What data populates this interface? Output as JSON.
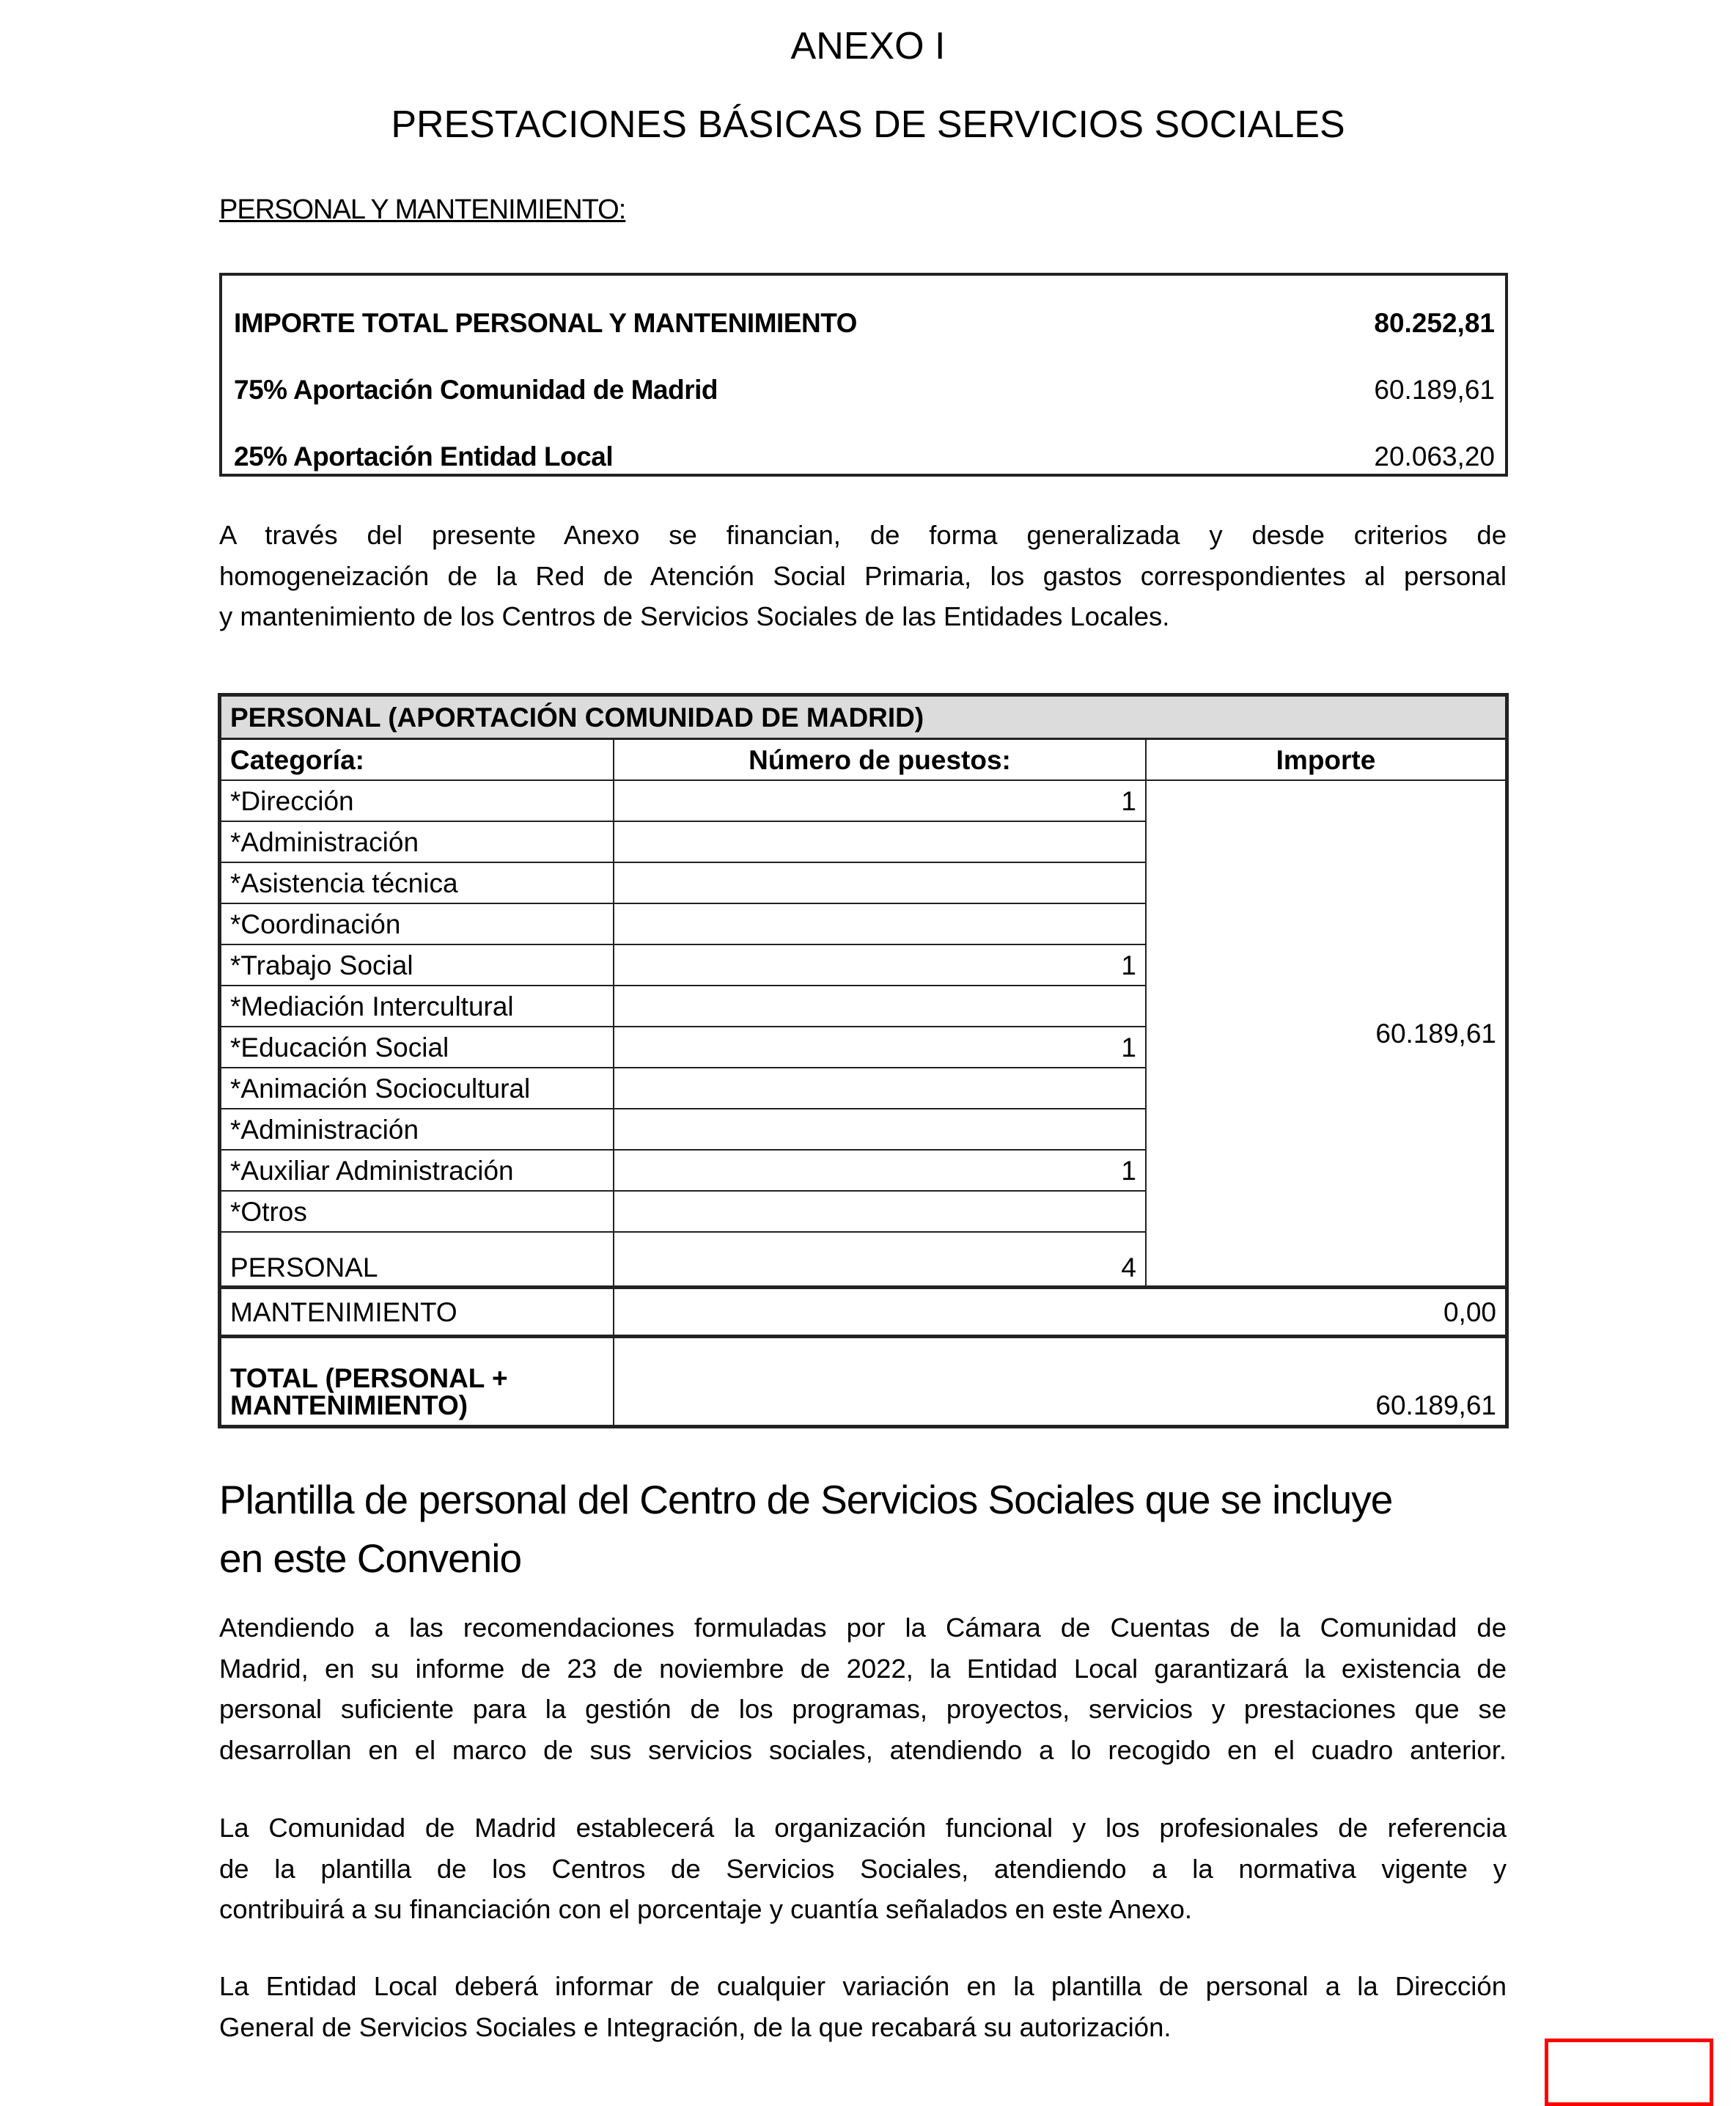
{
  "title": "ANEXO I",
  "subtitle": "PRESTACIONES BÁSICAS DE SERVICIOS SOCIALES",
  "section_heading": "PERSONAL Y MANTENIMIENTO:",
  "summary": [
    {
      "label": "IMPORTE TOTAL PERSONAL Y MANTENIMIENTO",
      "value": "80.252,81"
    },
    {
      "label": "75% Aportación Comunidad de Madrid",
      "value": "60.189,61"
    },
    {
      "label": "25% Aportación Entidad Local",
      "value": "20.063,20"
    }
  ],
  "intro_lines": [
    "A través del presente Anexo se financian, de forma generalizada y desde criterios de",
    "homogeneización de la Red de Atención Social Primaria, los gastos correspondientes al personal",
    "y mantenimiento de los Centros de Servicios Sociales de las Entidades Locales."
  ],
  "table": {
    "title": "PERSONAL (APORTACIÓN COMUNIDAD DE MADRID)",
    "headers": [
      "Categoría:",
      "Número de puestos:",
      "Importe"
    ],
    "rows": [
      {
        "cat": "*Dirección",
        "n": "1"
      },
      {
        "cat": "*Administración",
        "n": ""
      },
      {
        "cat": "*Asistencia técnica",
        "n": ""
      },
      {
        "cat": "*Coordinación",
        "n": ""
      },
      {
        "cat": "*Trabajo Social",
        "n": "1"
      },
      {
        "cat": "*Mediación Intercultural",
        "n": ""
      },
      {
        "cat": "*Educación Social",
        "n": "1"
      },
      {
        "cat": "*Animación Sociocultural",
        "n": ""
      },
      {
        "cat": "*Administración",
        "n": ""
      },
      {
        "cat": "*Auxiliar Administración",
        "n": "1"
      },
      {
        "cat": "*Otros",
        "n": ""
      }
    ],
    "importe": "60.189,61",
    "personal_label": "PERSONAL",
    "personal_total": "4",
    "mantenimiento_label": "MANTENIMIENTO",
    "mantenimiento_value": "0,00",
    "total_label_1": "TOTAL (PERSONAL +",
    "total_label_2": "MANTENIMIENTO)",
    "total_value": "60.189,61"
  },
  "heading2_lines": [
    "Plantilla de personal del Centro de Servicios Sociales que se incluye",
    "en este Convenio"
  ],
  "para1": [
    "Atendiendo a las recomendaciones formuladas por la Cámara de Cuentas de la Comunidad de",
    "Madrid, en su informe de 23 de noviembre de 2022, la Entidad Local garantizará la existencia de",
    "personal suficiente para la gestión de los programas, proyectos, servicios y prestaciones que se",
    "desarrollan en el marco de sus servicios sociales, atendiendo a lo recogido en el cuadro anterior."
  ],
  "para2": [
    "La Comunidad de Madrid establecerá la organización funcional y los profesionales de referencia",
    "de la plantilla de los Centros de Servicios Sociales, atendiendo a la normativa vigente y",
    "contribuirá a su financiación con el porcentaje y cuantía señalados en este Anexo."
  ],
  "para3": [
    "La Entidad Local deberá informar de cualquier variación en la plantilla de personal a la Dirección",
    "General de Servicios Sociales e Integración, de la que recabará su autorización."
  ],
  "colors": {
    "highlight_box": "#ff0000",
    "table_header_bg": "#dcdcdc"
  }
}
